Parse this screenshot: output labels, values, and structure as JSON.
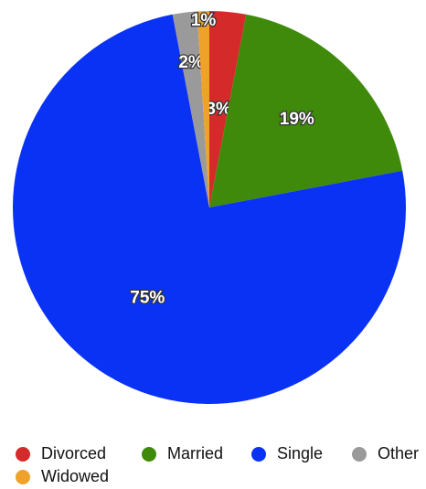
{
  "chart_data": {
    "type": "pie",
    "categories": [
      "Divorced",
      "Married",
      "Single",
      "Other",
      "Widowed"
    ],
    "values": [
      3,
      19,
      75,
      2,
      1
    ],
    "value_labels": [
      "3%",
      "19%",
      "75%",
      "2%",
      "1%"
    ],
    "colors": [
      "#d42a2a",
      "#3f8a0a",
      "#0a32f5",
      "#9a9a9a",
      "#eea22a"
    ],
    "legend": "bottom"
  }
}
